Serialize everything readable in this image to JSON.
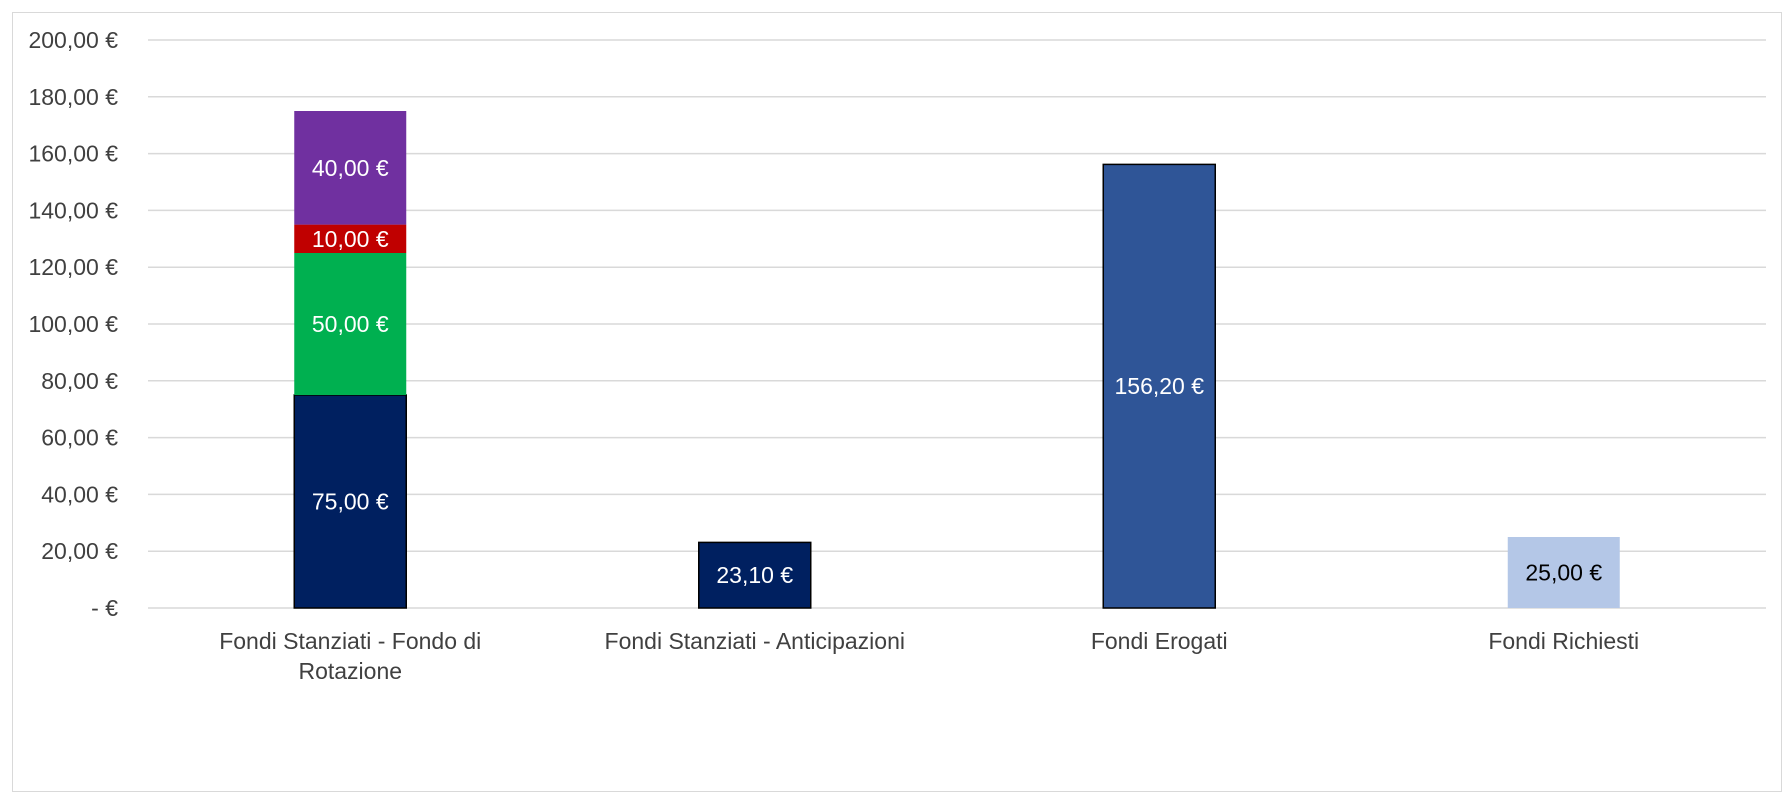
{
  "chart_data": {
    "type": "bar",
    "stacked": true,
    "title": "",
    "xlabel": "",
    "ylabel": "",
    "ylim": [
      0,
      200
    ],
    "y_ticks": [
      0,
      20,
      40,
      60,
      80,
      100,
      120,
      140,
      160,
      180,
      200
    ],
    "y_tick_labels": [
      "-  €",
      "20,00 €",
      "40,00 €",
      "60,00 €",
      "80,00 €",
      "100,00 €",
      "120,00 €",
      "140,00 €",
      "160,00 €",
      "180,00 €",
      "200,00 €"
    ],
    "grid": true,
    "legend": "none",
    "categories": [
      [
        "Fondi Stanziati - Fondo di",
        "Rotazione"
      ],
      [
        "Fondi Stanziati - Anticipazioni"
      ],
      [
        "Fondi Erogati"
      ],
      [
        "Fondi Richiesti"
      ]
    ],
    "bars": [
      {
        "segments": [
          {
            "value": 75.0,
            "label": "75,00 €",
            "color": "#002060",
            "label_color": "#ffffff",
            "outline": true
          },
          {
            "value": 50.0,
            "label": "50,00 €",
            "color": "#00b050",
            "label_color": "#ffffff",
            "outline": false
          },
          {
            "value": 10.0,
            "label": "10,00 €",
            "color": "#c00000",
            "label_color": "#ffffff",
            "outline": false
          },
          {
            "value": 40.0,
            "label": "40,00 €",
            "color": "#7030a0",
            "label_color": "#ffffff",
            "outline": false
          }
        ]
      },
      {
        "segments": [
          {
            "value": 23.1,
            "label": "23,10 €",
            "color": "#002060",
            "label_color": "#ffffff",
            "outline": true
          }
        ]
      },
      {
        "segments": [
          {
            "value": 156.2,
            "label": "156,20 €",
            "color": "#2f5597",
            "label_color": "#ffffff",
            "outline": true
          }
        ]
      },
      {
        "segments": [
          {
            "value": 25.0,
            "label": "25,00 €",
            "color": "#b4c7e7",
            "label_color": "#000000",
            "outline": false
          }
        ]
      }
    ]
  }
}
